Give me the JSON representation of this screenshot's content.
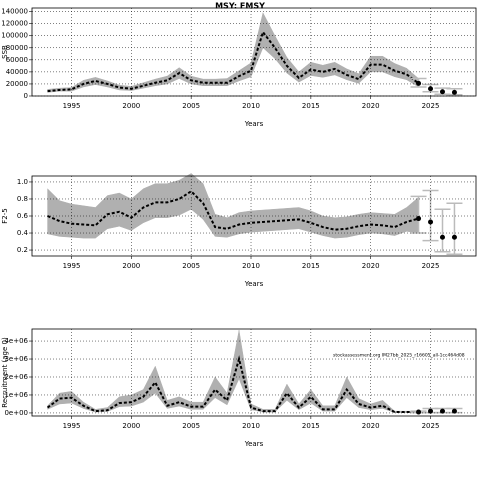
{
  "chart_data": [
    {
      "type": "line",
      "title": "MSY: FMSY",
      "xlabel": "Years",
      "ylabel": "SSB",
      "x": [
        1993,
        1994,
        1995,
        1996,
        1997,
        1998,
        1999,
        2000,
        2001,
        2002,
        2003,
        2004,
        2005,
        2006,
        2007,
        2008,
        2009,
        2010,
        2011,
        2012,
        2013,
        2014,
        2015,
        2016,
        2017,
        2018,
        2019,
        2020,
        2021,
        2022,
        2023,
        2024
      ],
      "values": [
        8000,
        10000,
        11000,
        20000,
        25000,
        20000,
        14000,
        12000,
        17000,
        22000,
        26000,
        38000,
        26000,
        22000,
        22000,
        22000,
        33000,
        42000,
        106000,
        80000,
        50000,
        30000,
        44000,
        40000,
        45000,
        35000,
        28000,
        52000,
        52000,
        42000,
        36000,
        21000
      ],
      "upper": [
        11000,
        13000,
        14000,
        26000,
        31000,
        25000,
        18000,
        16000,
        22000,
        28000,
        33000,
        47000,
        33000,
        28000,
        28000,
        29000,
        42000,
        55000,
        138000,
        100000,
        64000,
        40000,
        56000,
        51000,
        56000,
        45000,
        37000,
        66000,
        66000,
        54000,
        46000,
        29000
      ],
      "lower": [
        6000,
        8000,
        8000,
        15000,
        19000,
        15000,
        10000,
        9000,
        13000,
        17000,
        20000,
        29000,
        20000,
        17000,
        17000,
        17000,
        25000,
        32000,
        80000,
        62000,
        38000,
        23000,
        34000,
        31000,
        35000,
        27000,
        21000,
        40000,
        40000,
        32000,
        27000,
        15000
      ],
      "forecast_x": [
        2024,
        2025,
        2026,
        2027
      ],
      "forecast_values": [
        21000,
        12000,
        7000,
        6000
      ],
      "forecast_lower": [
        15000,
        7000,
        3000,
        2000
      ],
      "forecast_upper": [
        29000,
        19000,
        13000,
        12000
      ],
      "xlim": [
        1991.7,
        2028.8
      ],
      "xticks": [
        1995,
        2000,
        2005,
        2010,
        2015,
        2020,
        2025
      ],
      "ylim": [
        0,
        146000
      ],
      "yticks": [
        0,
        20000,
        40000,
        60000,
        80000,
        100000,
        120000,
        140000
      ],
      "grid": true
    },
    {
      "type": "line",
      "xlabel": "Years",
      "ylabel": "F2-5",
      "x": [
        1993,
        1994,
        1995,
        1996,
        1997,
        1998,
        1999,
        2000,
        2001,
        2002,
        2003,
        2004,
        2005,
        2006,
        2007,
        2008,
        2009,
        2010,
        2011,
        2012,
        2013,
        2014,
        2015,
        2016,
        2017,
        2018,
        2019,
        2020,
        2021,
        2022,
        2023,
        2024
      ],
      "values": [
        0.6,
        0.54,
        0.51,
        0.5,
        0.49,
        0.62,
        0.65,
        0.58,
        0.7,
        0.76,
        0.76,
        0.8,
        0.89,
        0.75,
        0.47,
        0.45,
        0.5,
        0.52,
        0.53,
        0.54,
        0.55,
        0.56,
        0.52,
        0.47,
        0.44,
        0.45,
        0.48,
        0.5,
        0.49,
        0.47,
        0.53,
        0.57
      ],
      "upper": [
        0.92,
        0.78,
        0.74,
        0.72,
        0.7,
        0.84,
        0.87,
        0.8,
        0.92,
        0.98,
        0.98,
        1.02,
        1.1,
        0.98,
        0.62,
        0.58,
        0.64,
        0.66,
        0.67,
        0.68,
        0.69,
        0.7,
        0.66,
        0.6,
        0.58,
        0.59,
        0.62,
        0.64,
        0.63,
        0.62,
        0.7,
        0.82
      ],
      "lower": [
        0.39,
        0.36,
        0.35,
        0.34,
        0.34,
        0.45,
        0.48,
        0.43,
        0.52,
        0.58,
        0.58,
        0.61,
        0.68,
        0.56,
        0.36,
        0.35,
        0.39,
        0.41,
        0.42,
        0.43,
        0.44,
        0.45,
        0.41,
        0.37,
        0.34,
        0.35,
        0.38,
        0.4,
        0.39,
        0.37,
        0.42,
        0.4
      ],
      "forecast_x": [
        2024,
        2025,
        2026,
        2027
      ],
      "forecast_values": [
        0.57,
        0.53,
        0.35,
        0.35
      ],
      "forecast_lower": [
        0.4,
        0.31,
        0.18,
        0.15
      ],
      "forecast_upper": [
        0.83,
        0.9,
        0.68,
        0.75
      ],
      "xlim": [
        1991.7,
        2028.8
      ],
      "xticks": [
        1995,
        2000,
        2005,
        2010,
        2015,
        2020,
        2025
      ],
      "ylim": [
        0.13,
        1.07
      ],
      "yticks": [
        0.2,
        0.4,
        0.6,
        0.8,
        {
          "value": 1,
          "label": "1.0"
        }
      ],
      "grid": true
    },
    {
      "type": "line",
      "xlabel": "Years",
      "ylabel": "Recruitment (age 0)",
      "annotation": "stockassessment.org IM27bb_2025_r16605_all-1cc464d08",
      "x": [
        1993,
        1994,
        1995,
        1996,
        1997,
        1998,
        1999,
        2000,
        2001,
        2002,
        2003,
        2004,
        2005,
        2006,
        2007,
        2008,
        2009,
        2010,
        2011,
        2012,
        2013,
        2014,
        2015,
        2016,
        2017,
        2018,
        2019,
        2020,
        2021,
        2022,
        2023,
        2024
      ],
      "values": [
        300000,
        800000,
        850000,
        400000,
        100000,
        150000,
        550000,
        600000,
        900000,
        1700000,
        400000,
        600000,
        350000,
        350000,
        1300000,
        700000,
        3000000,
        300000,
        100000,
        100000,
        1100000,
        300000,
        900000,
        200000,
        200000,
        1300000,
        500000,
        300000,
        400000,
        50000,
        50000,
        50000
      ],
      "upper": [
        400000,
        1100000,
        1200000,
        600000,
        200000,
        300000,
        900000,
        1000000,
        1300000,
        2600000,
        700000,
        900000,
        600000,
        600000,
        2000000,
        1100000,
        4600000,
        500000,
        200000,
        200000,
        1600000,
        500000,
        1300000,
        400000,
        400000,
        2000000,
        800000,
        500000,
        700000,
        100000,
        100000,
        100000
      ],
      "lower": [
        200000,
        500000,
        550000,
        250000,
        50000,
        80000,
        350000,
        380000,
        600000,
        1100000,
        250000,
        380000,
        200000,
        200000,
        850000,
        450000,
        1900000,
        180000,
        50000,
        50000,
        700000,
        180000,
        550000,
        100000,
        100000,
        850000,
        300000,
        180000,
        250000,
        20000,
        20000,
        20000
      ],
      "forecast_x": [
        2024,
        2025,
        2026,
        2027
      ],
      "forecast_values": [
        50000,
        100000,
        100000,
        100000
      ],
      "forecast_lower": [
        20000,
        20000,
        20000,
        20000
      ],
      "forecast_upper": [
        100000,
        250000,
        250000,
        250000
      ],
      "xlim": [
        1991.7,
        2028.8
      ],
      "xticks": [
        1995,
        2000,
        2005,
        2010,
        2015,
        2020,
        2025
      ],
      "ylim": [
        -170000,
        4670000
      ],
      "yticks": [
        {
          "value": 0,
          "label": "0e+00"
        },
        {
          "value": 1000000,
          "label": "1e+06"
        },
        {
          "value": 2000000,
          "label": "2e+06"
        },
        {
          "value": 3000000,
          "label": "3e+06"
        },
        {
          "value": 4000000,
          "label": "4e+06"
        }
      ],
      "grid": true
    }
  ]
}
